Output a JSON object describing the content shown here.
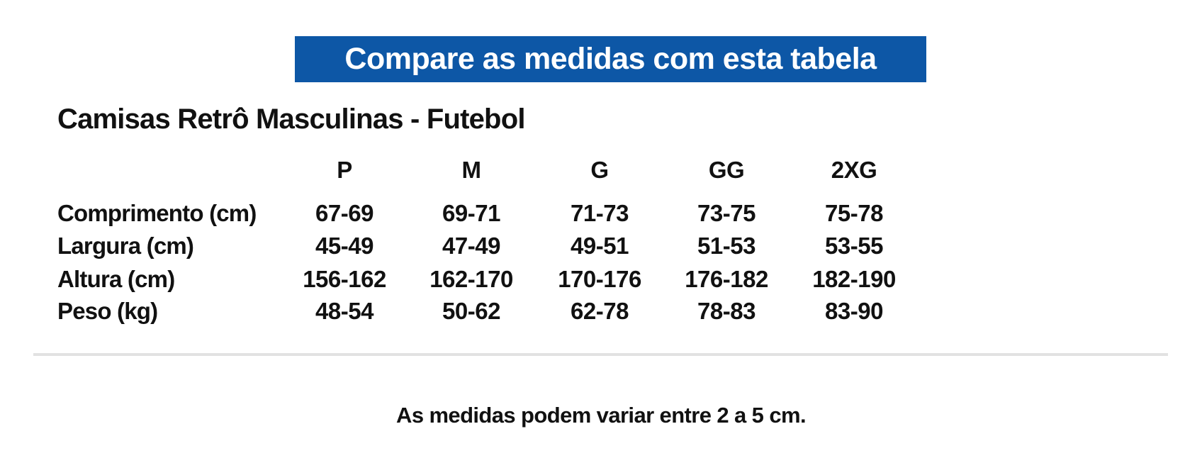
{
  "header": {
    "title": "Compare as medidas com esta tabela"
  },
  "subtitle": "Camisas Retrô Masculinas - Futebol",
  "table": {
    "columns": [
      "P",
      "M",
      "G",
      "GG",
      "2XG"
    ],
    "rows": [
      {
        "label": "Comprimento (cm)",
        "values": [
          "67-69",
          "69-71",
          "71-73",
          "73-75",
          "75-78"
        ]
      },
      {
        "label": "Largura (cm)",
        "values": [
          "45-49",
          "47-49",
          "49-51",
          "51-53",
          "53-55"
        ]
      },
      {
        "label": "Altura (cm)",
        "values": [
          "156-162",
          "162-170",
          "170-176",
          "176-182",
          "182-190"
        ]
      },
      {
        "label": "Peso (kg)",
        "values": [
          "48-54",
          "50-62",
          "62-78",
          "78-83",
          "83-90"
        ]
      }
    ]
  },
  "footer": "As medidas podem variar entre 2 a 5 cm."
}
